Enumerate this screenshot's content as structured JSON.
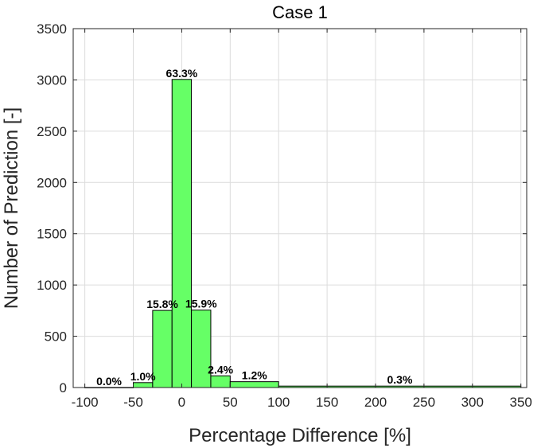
{
  "chart_data": {
    "type": "bar",
    "title": "Case 1",
    "xlabel": "Percentage Difference [%]",
    "ylabel": "Number of Prediction [-]",
    "xlim": [
      -112,
      356
    ],
    "ylim": [
      0,
      3500
    ],
    "xticks": [
      -100,
      -50,
      0,
      50,
      100,
      150,
      200,
      250,
      300,
      350
    ],
    "yticks": [
      0,
      500,
      1000,
      1500,
      2000,
      2500,
      3000,
      3500
    ],
    "xtick_labels": [
      "-100",
      "-50",
      "0",
      "50",
      "100",
      "150",
      "200",
      "250",
      "300",
      "350"
    ],
    "ytick_labels": [
      "0",
      "500",
      "1000",
      "1500",
      "2000",
      "2500",
      "3000",
      "3500"
    ],
    "grid": true,
    "bar_color": "#66ff66",
    "bins": [
      {
        "x0": -100,
        "x1": -50,
        "value": 1,
        "label": "0.0%"
      },
      {
        "x0": -50,
        "x1": -30,
        "value": 48,
        "label": "1.0%"
      },
      {
        "x0": -30,
        "x1": -10,
        "value": 752,
        "label": "15.8%"
      },
      {
        "x0": -10,
        "x1": 10,
        "value": 3005,
        "label": "63.3%"
      },
      {
        "x0": 10,
        "x1": 30,
        "value": 755,
        "label": "15.9%"
      },
      {
        "x0": 30,
        "x1": 50,
        "value": 114,
        "label": "2.4%"
      },
      {
        "x0": 50,
        "x1": 100,
        "value": 57,
        "label": "1.2%"
      },
      {
        "x0": 100,
        "x1": 350,
        "value": 14,
        "label": "0.3%"
      }
    ]
  }
}
